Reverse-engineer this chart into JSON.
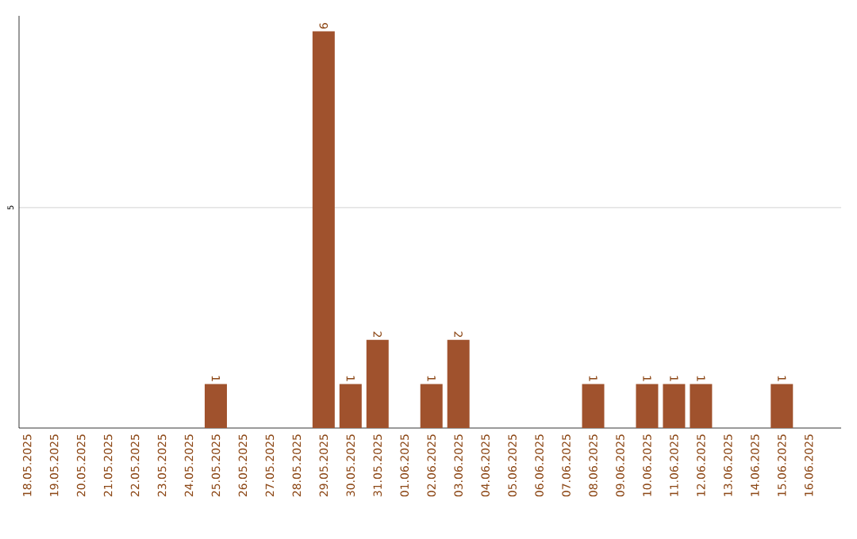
{
  "chart_data": {
    "type": "bar",
    "categories": [
      "18.05.2025",
      "19.05.2025",
      "20.05.2025",
      "21.05.2025",
      "22.05.2025",
      "23.05.2025",
      "24.05.2025",
      "25.05.2025",
      "26.05.2025",
      "27.05.2025",
      "28.05.2025",
      "29.05.2025",
      "30.05.2025",
      "31.05.2025",
      "01.06.2025",
      "02.06.2025",
      "03.06.2025",
      "04.06.2025",
      "05.06.2025",
      "06.06.2025",
      "07.06.2025",
      "08.06.2025",
      "09.06.2025",
      "10.06.2025",
      "11.06.2025",
      "12.06.2025",
      "13.06.2025",
      "14.06.2025",
      "15.06.2025",
      "16.06.2025"
    ],
    "values": [
      0,
      0,
      0,
      0,
      0,
      0,
      0,
      1,
      0,
      0,
      0,
      9,
      1,
      2,
      0,
      1,
      2,
      0,
      0,
      0,
      0,
      1,
      0,
      1,
      1,
      1,
      0,
      0,
      1,
      0
    ],
    "value_labels": [
      null,
      null,
      null,
      null,
      null,
      null,
      null,
      "1",
      null,
      null,
      null,
      "9",
      "1",
      "2",
      null,
      "1",
      "2",
      null,
      null,
      null,
      null,
      "1",
      null,
      "1",
      "1",
      "1",
      null,
      null,
      "1",
      null
    ],
    "color": "#a0522d",
    "ylim": [
      0,
      9.35
    ],
    "yticks": [
      5
    ],
    "grid": "y"
  }
}
